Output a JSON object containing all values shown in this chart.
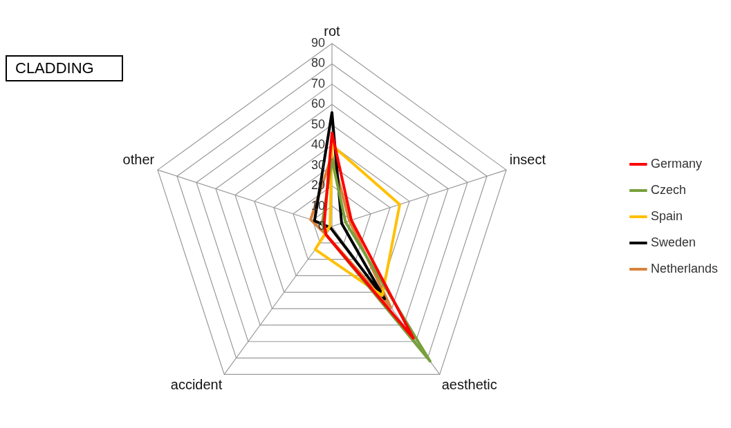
{
  "chart_data": {
    "type": "radar",
    "title": "CLADDING",
    "categories": [
      "rot",
      "insect",
      "aesthetic",
      "accident",
      "other"
    ],
    "series": [
      {
        "name": "Germany",
        "color": "#ff0000",
        "values": [
          46,
          10,
          68,
          5,
          4
        ]
      },
      {
        "name": "Czech",
        "color": "#77a03c",
        "values": [
          33,
          7,
          82,
          5,
          5
        ]
      },
      {
        "name": "Spain",
        "color": "#ffc000",
        "values": [
          40,
          35,
          42,
          14,
          1
        ]
      },
      {
        "name": "Sweden",
        "color": "#000000",
        "values": [
          56,
          5,
          44,
          1,
          9
        ]
      },
      {
        "name": "Netherlands",
        "color": "#d9823b",
        "values": [
          35,
          9,
          49,
          5,
          11
        ]
      }
    ],
    "ylim": [
      0,
      90
    ],
    "yticks": [
      0,
      10,
      20,
      30,
      40,
      50,
      60,
      70,
      80,
      90
    ],
    "grid": true,
    "legend": "right",
    "marker": "none",
    "line_style": "solid"
  }
}
